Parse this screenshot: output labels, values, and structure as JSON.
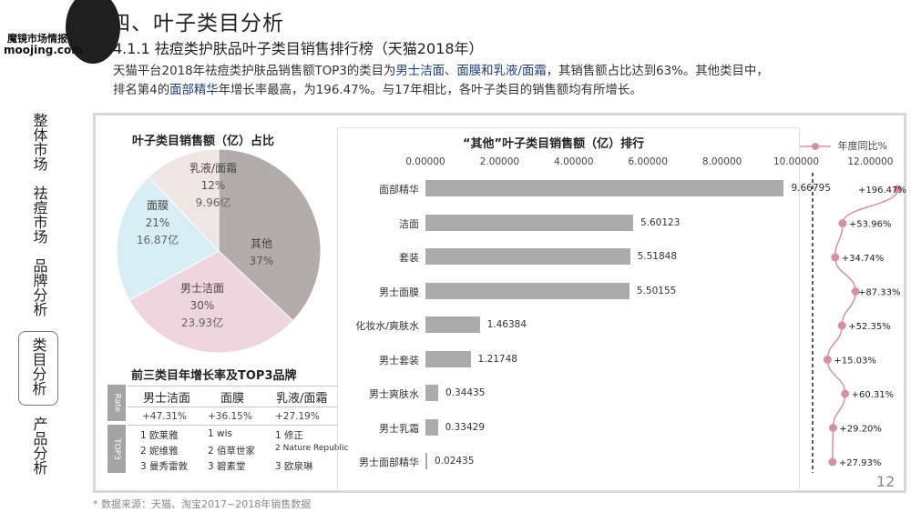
{
  "logo": {
    "cn": "魔镜市场情报",
    "en": "moojing.com"
  },
  "header": {
    "title": "四、叶子类目分析",
    "subtitle": "4.1.1 祛痘类护肤品叶子类目销售排行榜（天猫2018年）"
  },
  "description": {
    "l1a": "天猫平台2018年祛痘类护肤品销售额TOP3的类目为",
    "l1b": "男士洁面、面膜和乳液/面霜",
    "l1c": "，其销售额占比达到63%。其他类目中，",
    "l2a": "排名第4的",
    "l2b": "面部精华",
    "l2c": "年增长率最高，为196.47%。与17年相比，各叶子类目的销售额均有所增长。"
  },
  "nav": {
    "items": [
      "整体市场",
      "祛痘市场",
      "品牌分析",
      "类目分析",
      "产品分析"
    ],
    "active": "类目分析"
  },
  "pie": {
    "title": "叶子类目销售额（亿）占比",
    "slices": [
      {
        "name": "其他",
        "pct": "37%",
        "amount": "",
        "value": 37,
        "color": "#b3acad"
      },
      {
        "name": "男士洁面",
        "pct": "30%",
        "amount": "23.93亿",
        "value": 30,
        "color": "#efd5de"
      },
      {
        "name": "面膜",
        "pct": "21%",
        "amount": "16.87亿",
        "value": 21,
        "color": "#d6eef4"
      },
      {
        "name": "乳液/面霜",
        "pct": "12%",
        "amount": "9.96亿",
        "value": 12,
        "color": "#efe5e2"
      }
    ]
  },
  "table": {
    "title": "前三类目年增长率及TOP3品牌",
    "side_rate": "Rate",
    "side_top": "TOP3",
    "headers": [
      "男士洁面",
      "面膜",
      "乳液/面霜"
    ],
    "rates": [
      "+47.31%",
      "+36.15%",
      "+27.19%"
    ],
    "brands": [
      [
        "1 欧莱雅",
        "1 wis",
        "1 修正"
      ],
      [
        "2 妮维雅",
        "2 佰草世家",
        "2 Nature Republic"
      ],
      [
        "3 曼秀雷敦",
        "3 碧素堂",
        "3 欧泉琳"
      ]
    ]
  },
  "chart_data": {
    "type": "bar",
    "title": "“其他”叶子类目销售额（亿）排行",
    "orientation": "horizontal",
    "categories": [
      "面部精华",
      "洁面",
      "套装",
      "男士面膜",
      "化妆水/爽肤水",
      "男士套装",
      "男士爽肤水",
      "男士乳霜",
      "男士面部精华"
    ],
    "values": [
      9.66795,
      5.60123,
      5.51848,
      5.50155,
      1.46384,
      1.21748,
      0.34435,
      0.33429,
      0.02435
    ],
    "value_labels": [
      "9.66795",
      "5.60123",
      "5.51848",
      "5.50155",
      "1.46384",
      "1.21748",
      "0.34435",
      "0.33429",
      "0.02435"
    ],
    "xlim": [
      0,
      12
    ],
    "xticks": [
      "0.00000",
      "2.00000",
      "4.00000",
      "6.00000",
      "8.00000",
      "10.00000",
      "12.00000"
    ],
    "series2": {
      "name": "年度同比%",
      "type": "line",
      "values": [
        196.47,
        53.96,
        34.74,
        87.33,
        52.35,
        15.03,
        60.31,
        29.2,
        27.93
      ],
      "labels": [
        "+196.47%",
        "+53.96%",
        "+34.74%",
        "+87.33%",
        "+52.35%",
        "+15.03%",
        "+60.31%",
        "+29.20%",
        "+27.93%"
      ],
      "color": "#d98fa3"
    }
  },
  "footer": {
    "page": "12",
    "source": "* 数据来源：天猫、淘宝2017~2018年销售数据"
  }
}
